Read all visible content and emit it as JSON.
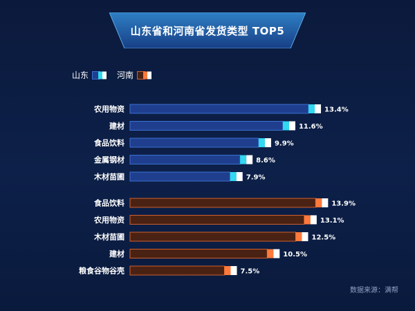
{
  "title": "山东省和河南省发货类型 TOP5",
  "source": "数据来源：满帮",
  "colors": {
    "shandong_fill": "#1f3f8e",
    "shandong_border": "#3b6fd1",
    "shandong_accent": "#30d8f0",
    "henan_fill": "#4a2214",
    "henan_border": "#d0602a",
    "henan_accent": "#ff7a3c",
    "cap": "#ffffff"
  },
  "chart_data": {
    "type": "bar",
    "orientation": "horizontal",
    "legend": [
      "山东",
      "河南"
    ],
    "legend_position": "top-left",
    "value_unit": "%",
    "series": [
      {
        "name": "山东",
        "categories": [
          "农用物资",
          "建材",
          "食品饮料",
          "金属钢材",
          "木材苗圃"
        ],
        "values": [
          13.4,
          11.6,
          9.9,
          8.6,
          7.9
        ],
        "labels": [
          "13.4%",
          "11.6%",
          "9.9%",
          "8.6%",
          "7.9%"
        ]
      },
      {
        "name": "河南",
        "categories": [
          "食品饮料",
          "农用物资",
          "木材苗圃",
          "建材",
          "粮食谷物谷壳"
        ],
        "values": [
          13.9,
          13.1,
          12.5,
          10.5,
          7.5
        ],
        "labels": [
          "13.9%",
          "13.1%",
          "12.5%",
          "10.5%",
          "7.5%"
        ]
      }
    ]
  }
}
